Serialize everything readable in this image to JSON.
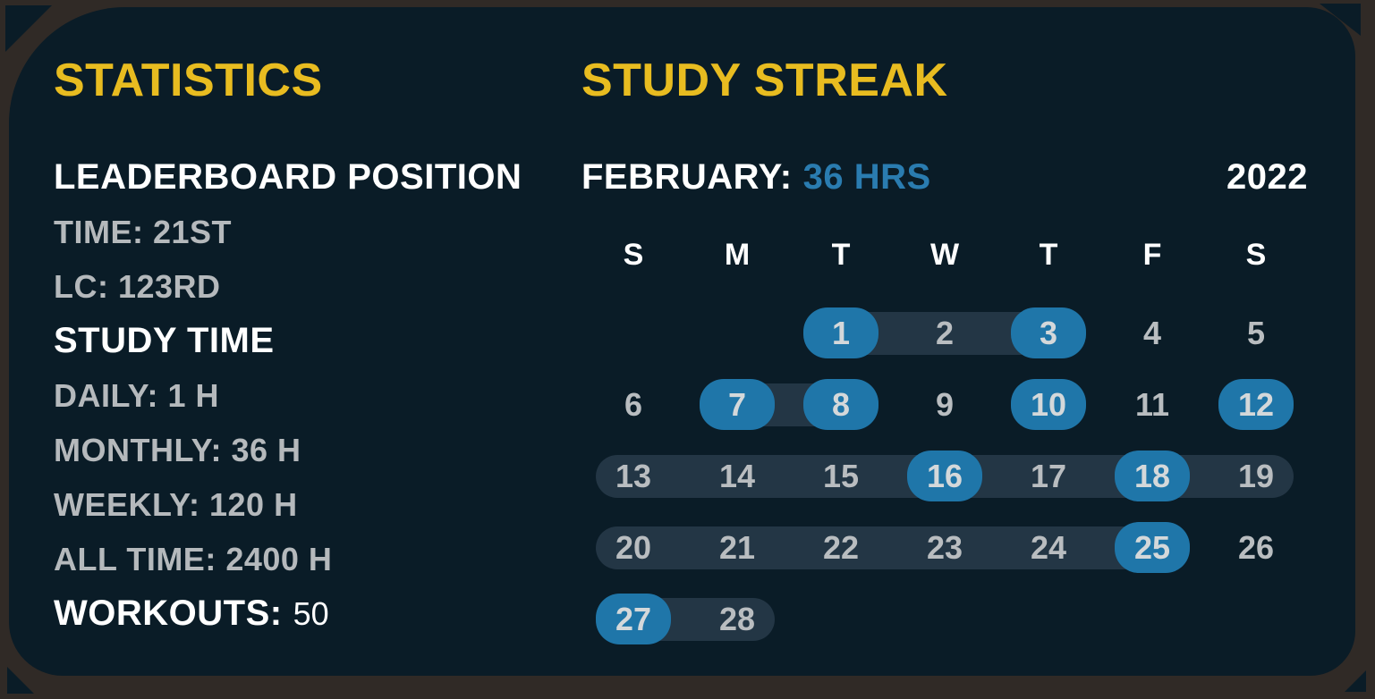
{
  "colors": {
    "frame_brown": "#302a26",
    "card_navy": "#0a1c27",
    "accent_yellow": "#e8bc20",
    "accent_blue_text": "#2a7cb0",
    "day_active_blue": "#1f76a9",
    "streak_pill": "#233645",
    "text_gray": "#b5b9bc",
    "text_white": "#ffffff"
  },
  "statistics": {
    "title": "STATISTICS",
    "lines": [
      {
        "text": "LEADERBOARD POSITION",
        "style": "heading"
      },
      {
        "text": "TIME: 21ST",
        "style": "item"
      },
      {
        "text": "LC: 123RD",
        "style": "item"
      },
      {
        "text": "STUDY TIME",
        "style": "heading"
      },
      {
        "text": "DAILY: 1 H",
        "style": "item"
      },
      {
        "text": "MONTHLY: 36 H",
        "style": "item"
      },
      {
        "text": "WEEKLY: 120 H",
        "style": "item"
      },
      {
        "text": "ALL TIME: 2400 H",
        "style": "item"
      }
    ],
    "workouts": {
      "label": "WORKOUTS:",
      "value": "50"
    }
  },
  "streak": {
    "title": "STUDY STREAK",
    "month_label": "FEBRUARY:",
    "month_hours": "36 HRS",
    "year": "2022",
    "day_headers": [
      "S",
      "M",
      "T",
      "W",
      "T",
      "F",
      "S"
    ],
    "weeks": [
      {
        "pills": [
          [
            3,
            5
          ]
        ],
        "days": [
          {
            "col": 3,
            "num": "1",
            "active": true
          },
          {
            "col": 4,
            "num": "2",
            "active": false
          },
          {
            "col": 5,
            "num": "3",
            "active": true
          },
          {
            "col": 6,
            "num": "4",
            "active": false
          },
          {
            "col": 7,
            "num": "5",
            "active": false
          }
        ]
      },
      {
        "pills": [
          [
            2,
            3
          ]
        ],
        "days": [
          {
            "col": 1,
            "num": "6",
            "active": false
          },
          {
            "col": 2,
            "num": "7",
            "active": true
          },
          {
            "col": 3,
            "num": "8",
            "active": true
          },
          {
            "col": 4,
            "num": "9",
            "active": false
          },
          {
            "col": 5,
            "num": "10",
            "active": true
          },
          {
            "col": 6,
            "num": "11",
            "active": false
          },
          {
            "col": 7,
            "num": "12",
            "active": true
          }
        ]
      },
      {
        "pills": [
          [
            1,
            7
          ]
        ],
        "days": [
          {
            "col": 1,
            "num": "13",
            "active": false
          },
          {
            "col": 2,
            "num": "14",
            "active": false
          },
          {
            "col": 3,
            "num": "15",
            "active": false
          },
          {
            "col": 4,
            "num": "16",
            "active": true
          },
          {
            "col": 5,
            "num": "17",
            "active": false
          },
          {
            "col": 6,
            "num": "18",
            "active": true
          },
          {
            "col": 7,
            "num": "19",
            "active": false
          }
        ]
      },
      {
        "pills": [
          [
            1,
            6
          ]
        ],
        "days": [
          {
            "col": 1,
            "num": "20",
            "active": false
          },
          {
            "col": 2,
            "num": "21",
            "active": false
          },
          {
            "col": 3,
            "num": "22",
            "active": false
          },
          {
            "col": 4,
            "num": "23",
            "active": false
          },
          {
            "col": 5,
            "num": "24",
            "active": false
          },
          {
            "col": 6,
            "num": "25",
            "active": true
          },
          {
            "col": 7,
            "num": "26",
            "active": false
          }
        ]
      },
      {
        "pills": [
          [
            1,
            2
          ]
        ],
        "days": [
          {
            "col": 1,
            "num": "27",
            "active": true
          },
          {
            "col": 2,
            "num": "28",
            "active": false
          }
        ]
      }
    ]
  }
}
